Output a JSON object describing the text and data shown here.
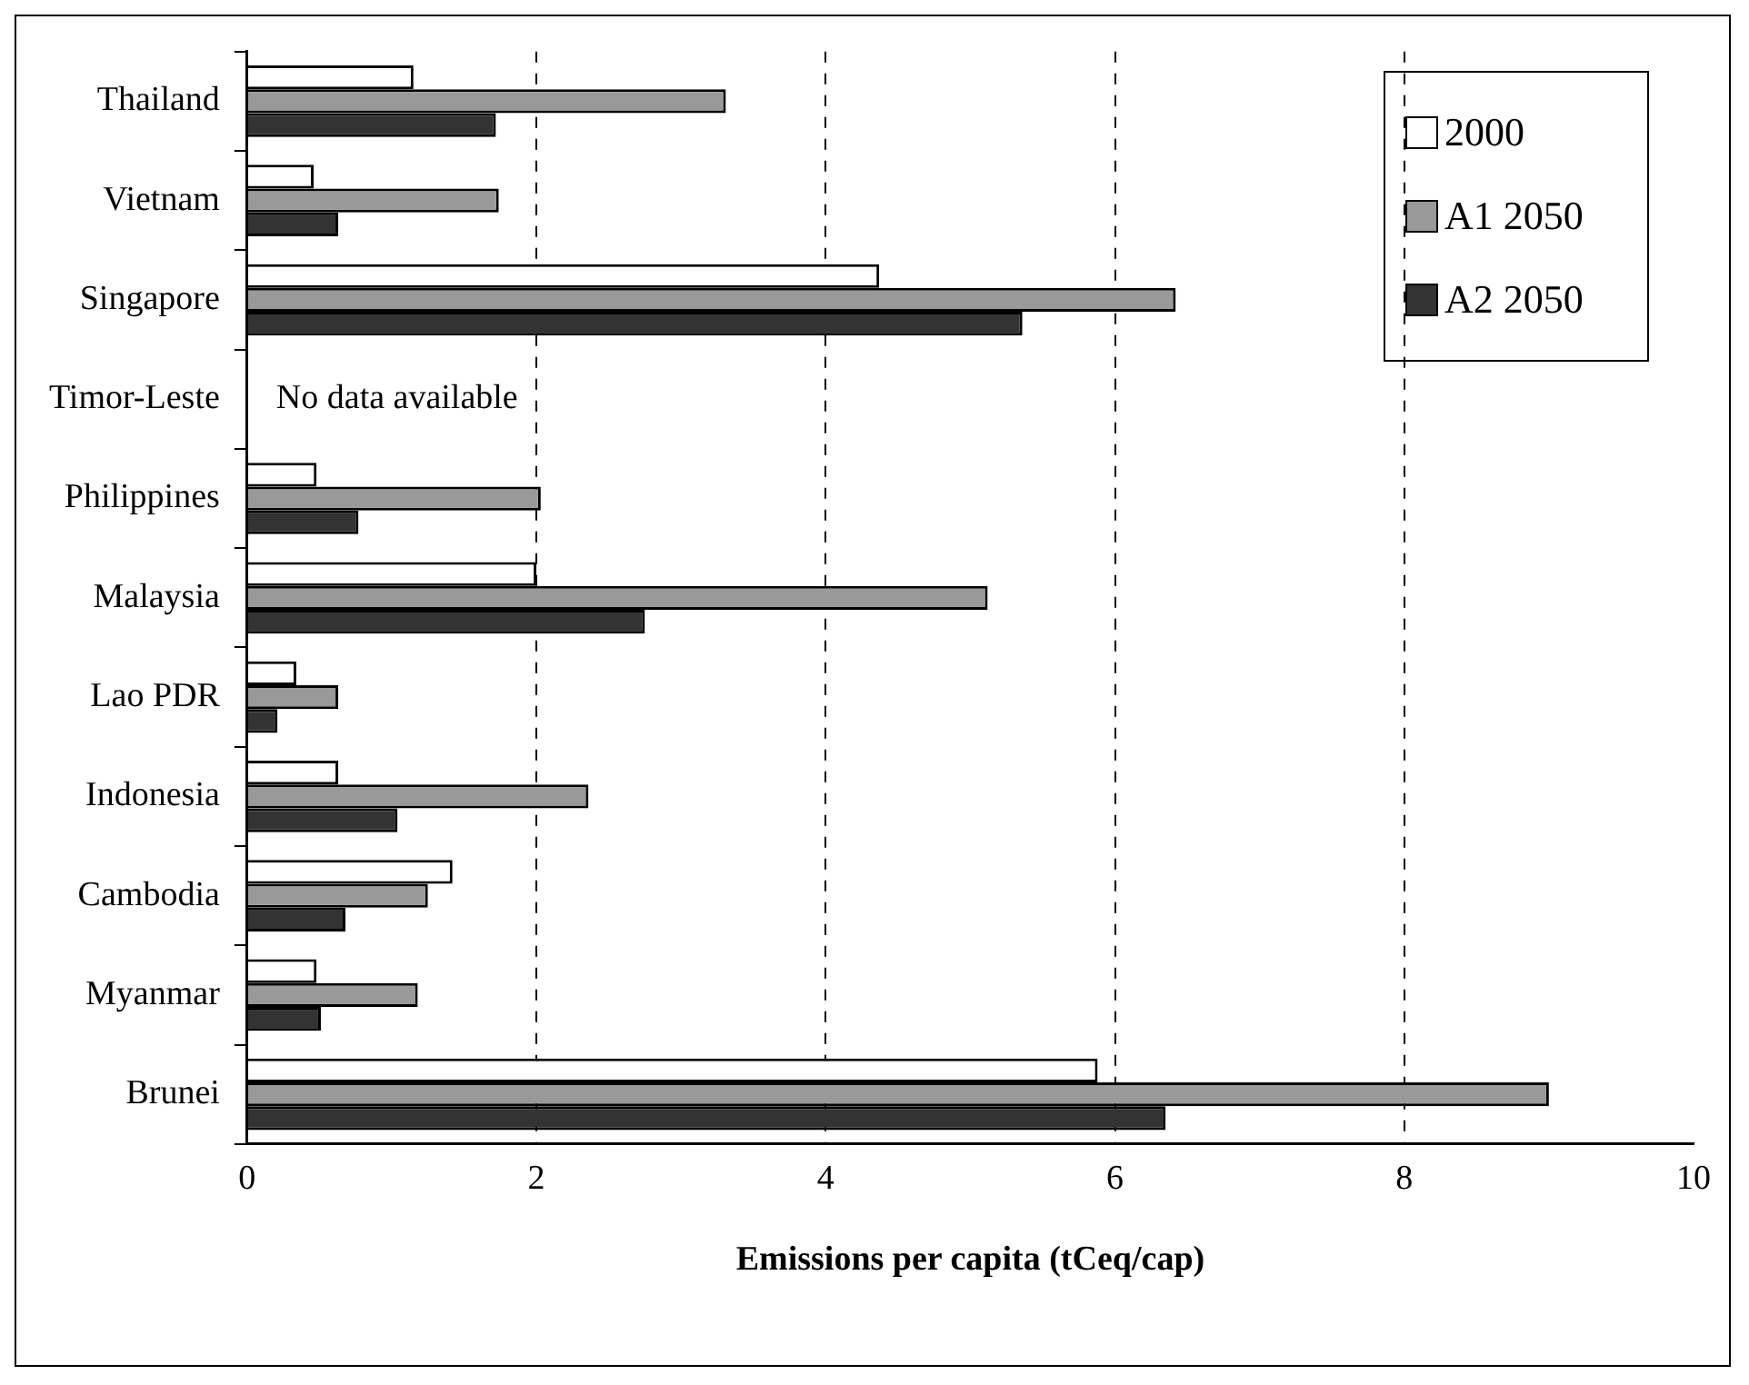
{
  "chart_data": {
    "type": "bar",
    "orientation": "horizontal",
    "xlabel": "Emissions per capita (tCeq/cap)",
    "categories": [
      "Thailand",
      "Vietnam",
      "Singapore",
      "Timor-Leste",
      "Philippines",
      "Malaysia",
      "Lao PDR",
      "Indonesia",
      "Cambodia",
      "Myanmar",
      "Brunei"
    ],
    "series": [
      {
        "name": "2000",
        "color": "#ffffff",
        "values": [
          1.15,
          0.46,
          4.37,
          null,
          0.48,
          2.0,
          0.34,
          0.63,
          1.42,
          0.48,
          5.88
        ]
      },
      {
        "name": "A1 2050",
        "color": "#999999",
        "values": [
          3.31,
          1.74,
          6.42,
          null,
          2.03,
          5.12,
          0.63,
          2.36,
          1.25,
          1.18,
          9.0
        ]
      },
      {
        "name": "A2 2050",
        "color": "#333333",
        "values": [
          1.72,
          0.63,
          5.36,
          null,
          0.77,
          2.75,
          0.21,
          1.04,
          0.68,
          0.51,
          6.35
        ]
      }
    ],
    "xlim": [
      0,
      10
    ],
    "xticks": [
      0,
      2,
      4,
      6,
      8,
      10
    ],
    "grid": "x",
    "legend": "top right",
    "annotations": [
      "No data available"
    ]
  }
}
